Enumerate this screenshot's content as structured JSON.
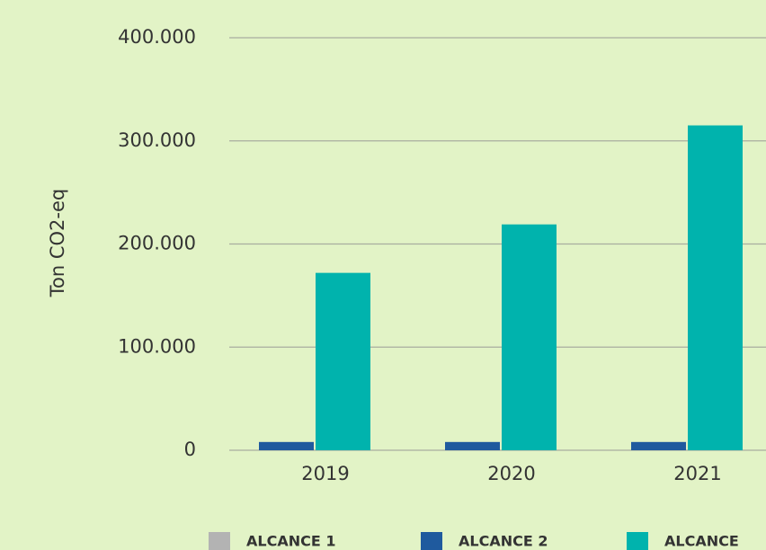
{
  "chart_data": {
    "type": "bar",
    "y_label": "Ton CO2-eq",
    "categories": [
      "2019",
      "2020",
      "2021"
    ],
    "series": [
      {
        "name": "ALCANCE 1",
        "color": "#b3b3b3",
        "values": [
          0,
          0,
          0
        ]
      },
      {
        "name": "ALCANCE 2",
        "color": "#1f5a9e",
        "values": [
          8000,
          8000,
          8000
        ]
      },
      {
        "name": "ALCANCE",
        "color": "#00b3ad",
        "values": [
          172000,
          219000,
          315000
        ]
      }
    ],
    "ylim": [
      0,
      400000
    ],
    "yticks": [
      0,
      {
        "value": 100000,
        "label": "100.000"
      },
      {
        "value": 200000,
        "label": "200.000"
      },
      {
        "value": 300000,
        "label": "300.000"
      },
      {
        "value": 400000,
        "label": "400.000"
      }
    ],
    "grid": true
  }
}
